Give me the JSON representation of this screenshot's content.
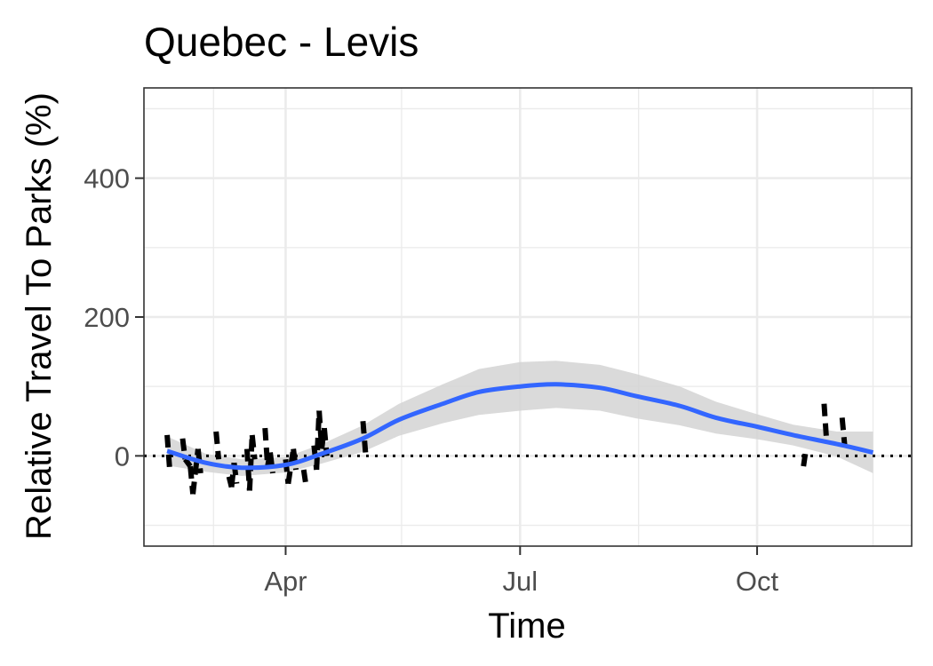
{
  "chart_data": {
    "type": "line",
    "title": "Quebec - Levis",
    "xlabel": "Time",
    "ylabel": "Relative Travel To Parks (%)",
    "x_ticks": [
      "Apr",
      "Jul",
      "Oct"
    ],
    "x_tick_dates": [
      "2020-04-01",
      "2020-07-01",
      "2020-10-01"
    ],
    "xlim": [
      "2020-02-06",
      "2020-11-30"
    ],
    "y_ticks": [
      0,
      200,
      400
    ],
    "ylim": [
      -130,
      530
    ],
    "grid": true,
    "reference_line": {
      "y": 0,
      "style": "dotted"
    },
    "colors": {
      "trend": "#3366ff",
      "band": "#d3d3d3",
      "observed": "#000000",
      "grid": "#ebebeb"
    },
    "series": [
      {
        "style": "dashed-segments",
        "points": [
          {
            "date": "2020-02-15",
            "y": 30
          },
          {
            "date": "2020-02-16",
            "y": -20
          },
          {
            "date": "2020-02-21",
            "y": 25
          },
          {
            "date": "2020-02-22",
            "y": -5
          },
          {
            "date": "2020-02-24",
            "y": -15
          },
          {
            "date": "2020-02-25",
            "y": -55
          },
          {
            "date": "2020-02-27",
            "y": 10
          },
          {
            "date": "2020-02-28",
            "y": -25
          },
          {
            "date": "2020-03-05",
            "y": 35
          },
          {
            "date": "2020-03-06",
            "y": -5
          },
          {
            "date": "2020-03-10",
            "y": -30
          },
          {
            "date": "2020-03-11",
            "y": -45
          },
          {
            "date": "2020-03-12",
            "y": -10
          },
          {
            "date": "2020-03-13",
            "y": -40
          },
          {
            "date": "2020-03-17",
            "y": 10
          },
          {
            "date": "2020-03-18",
            "y": -50
          },
          {
            "date": "2020-03-19",
            "y": 30
          },
          {
            "date": "2020-03-20",
            "y": -5
          },
          {
            "date": "2020-03-24",
            "y": 40
          },
          {
            "date": "2020-03-25",
            "y": -15
          },
          {
            "date": "2020-03-26",
            "y": 5
          },
          {
            "date": "2020-03-27",
            "y": -25
          },
          {
            "date": "2020-04-01",
            "y": -5
          },
          {
            "date": "2020-04-02",
            "y": -40
          },
          {
            "date": "2020-04-04",
            "y": 10
          },
          {
            "date": "2020-04-05",
            "y": -20
          },
          {
            "date": "2020-04-08",
            "y": -20
          },
          {
            "date": "2020-04-09",
            "y": -45
          },
          {
            "date": "2020-04-12",
            "y": 15
          },
          {
            "date": "2020-04-13",
            "y": -20
          },
          {
            "date": "2020-04-14",
            "y": 65
          },
          {
            "date": "2020-04-15",
            "y": 10
          },
          {
            "date": "2020-04-16",
            "y": 40
          },
          {
            "date": "2020-04-17",
            "y": 0
          },
          {
            "date": "2020-05-01",
            "y": 50
          },
          {
            "date": "2020-05-02",
            "y": 5
          },
          {
            "date": "2020-10-19",
            "y": -15
          },
          {
            "date": "2020-10-20",
            "y": 10
          },
          {
            "date": "2020-10-27",
            "y": 75
          },
          {
            "date": "2020-10-28",
            "y": 20
          },
          {
            "date": "2020-11-03",
            "y": 55
          },
          {
            "date": "2020-11-04",
            "y": 15
          }
        ]
      },
      {
        "style": "smooth-trend",
        "points": [
          {
            "date": "2020-02-15",
            "y": 7
          },
          {
            "date": "2020-03-01",
            "y": -10
          },
          {
            "date": "2020-03-15",
            "y": -17
          },
          {
            "date": "2020-04-01",
            "y": -13
          },
          {
            "date": "2020-04-15",
            "y": 3
          },
          {
            "date": "2020-05-01",
            "y": 25
          },
          {
            "date": "2020-05-15",
            "y": 52
          },
          {
            "date": "2020-06-01",
            "y": 75
          },
          {
            "date": "2020-06-15",
            "y": 92
          },
          {
            "date": "2020-07-01",
            "y": 100
          },
          {
            "date": "2020-07-15",
            "y": 103
          },
          {
            "date": "2020-08-01",
            "y": 98
          },
          {
            "date": "2020-08-15",
            "y": 86
          },
          {
            "date": "2020-09-01",
            "y": 72
          },
          {
            "date": "2020-09-15",
            "y": 55
          },
          {
            "date": "2020-10-01",
            "y": 42
          },
          {
            "date": "2020-10-15",
            "y": 30
          },
          {
            "date": "2020-11-01",
            "y": 17
          },
          {
            "date": "2020-11-15",
            "y": 5
          }
        ],
        "band_upper": [
          28,
          3,
          -5,
          -2,
          17,
          44,
          75,
          103,
          125,
          135,
          137,
          131,
          118,
          100,
          78,
          60,
          45,
          35,
          35
        ],
        "band_lower": [
          -14,
          -23,
          -29,
          -24,
          -11,
          6,
          29,
          47,
          59,
          65,
          69,
          65,
          54,
          44,
          32,
          24,
          15,
          -1,
          -25
        ]
      }
    ]
  }
}
